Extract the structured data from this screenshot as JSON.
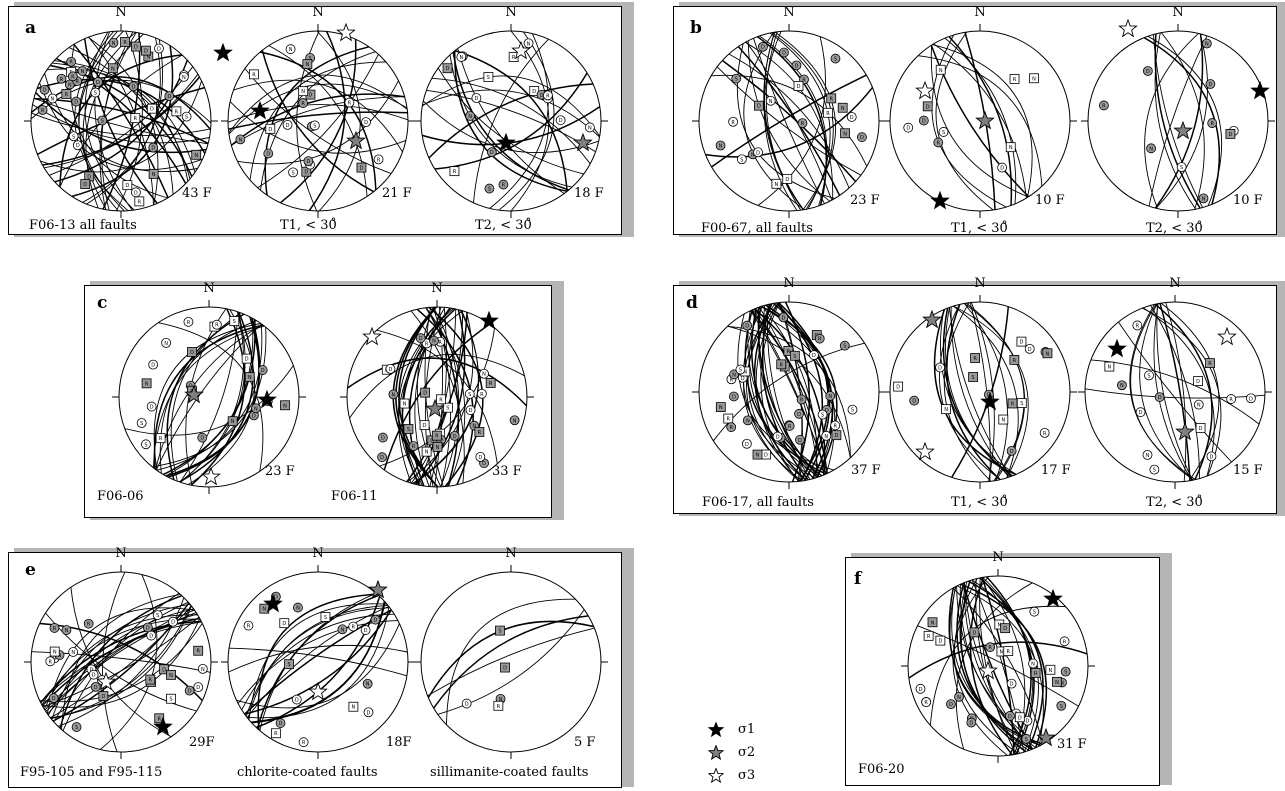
{
  "north_label": "N",
  "colors": {
    "sigma1": "#000000",
    "sigma2": "#7f7f7f",
    "sigma3": "#ffffff",
    "symbol_gray": "#9a9a9a",
    "shadow": "#b5b5b5"
  },
  "legend": [
    {
      "id": "s1",
      "label": "σ1",
      "fill": "#000000"
    },
    {
      "id": "s2",
      "label": "σ2",
      "fill": "#7f7f7f"
    },
    {
      "id": "s3",
      "label": "σ3",
      "fill": "#ffffff"
    }
  ],
  "panels": [
    {
      "id": "a",
      "letter": "a",
      "nets": [
        {
          "label": "F06-13 all faults",
          "count": "43 F",
          "n": 43,
          "seed": 11,
          "azim": [
            0,
            180
          ],
          "s1": [
            102,
            -68
          ],
          "s2": [
            null,
            null
          ],
          "s3": [
            null,
            null
          ]
        },
        {
          "label": "T1, < 30̊",
          "count": "21 F",
          "n": 21,
          "seed": 23,
          "azim": [
            0,
            180
          ],
          "s1": [
            -58,
            -10
          ],
          "s2": [
            38,
            20
          ],
          "s3": [
            28,
            -88
          ]
        },
        {
          "label": "T2, < 30̊",
          "count": "18 F",
          "n": 18,
          "seed": 37,
          "azim": [
            0,
            180
          ],
          "s1": [
            -5,
            22
          ],
          "s2": [
            72,
            22
          ],
          "s3": [
            10,
            -70
          ]
        }
      ]
    },
    {
      "id": "b",
      "letter": "b",
      "nets": [
        {
          "label": "F00-67, all faults",
          "count": "23 F",
          "n": 23,
          "seed": 41,
          "azim": [
            95,
            140
          ],
          "s1": [
            null,
            null
          ],
          "s2": [
            null,
            null
          ],
          "s3": [
            null,
            null
          ]
        },
        {
          "label": "T1, < 30̊",
          "count": "10 F",
          "n": 10,
          "seed": 53,
          "azim": [
            95,
            140
          ],
          "s1": [
            -40,
            80
          ],
          "s2": [
            5,
            0
          ],
          "s3": [
            -55,
            -30
          ]
        },
        {
          "label": "T2, < 30̊",
          "count": "10 F",
          "n": 10,
          "seed": 67,
          "azim": [
            70,
            120
          ],
          "s1": [
            82,
            -30
          ],
          "s2": [
            5,
            10
          ],
          "s3": [
            -50,
            -92
          ]
        }
      ]
    },
    {
      "id": "c",
      "letter": "c",
      "nets": [
        {
          "label": "F06-06",
          "count": "23 F",
          "n": 23,
          "seed": 71,
          "azim": [
            50,
            80
          ],
          "s1": [
            58,
            3
          ],
          "s2": [
            -15,
            -2
          ],
          "s3": [
            2,
            80
          ]
        },
        {
          "label": "F06-11",
          "count": "33 F",
          "n": 33,
          "seed": 83,
          "azim": [
            70,
            110
          ],
          "s1": [
            52,
            -76
          ],
          "s2": [
            -2,
            12
          ],
          "s3": [
            -65,
            -60
          ]
        }
      ]
    },
    {
      "id": "d",
      "letter": "d",
      "nets": [
        {
          "label": "F06-17, all faults",
          "count": "37 F",
          "n": 37,
          "seed": 91,
          "azim": [
            95,
            120
          ],
          "s1": [
            null,
            null
          ],
          "s2": [
            null,
            null
          ],
          "s3": [
            null,
            null
          ]
        },
        {
          "label": "T1, < 30̊",
          "count": "17 F",
          "n": 17,
          "seed": 101,
          "azim": [
            95,
            115
          ],
          "s1": [
            10,
            10
          ],
          "s2": [
            -48,
            -72
          ],
          "s3": [
            -55,
            60
          ]
        },
        {
          "label": "T2, < 30̊",
          "count": "15 F",
          "n": 15,
          "seed": 113,
          "azim": [
            95,
            115
          ],
          "s1": [
            -58,
            -43
          ],
          "s2": [
            10,
            40
          ],
          "s3": [
            52,
            -55
          ]
        }
      ]
    },
    {
      "id": "e",
      "letter": "e",
      "nets": [
        {
          "label": "F95-105 and F95-115",
          "count": "29F",
          "n": 29,
          "seed": 127,
          "azim": [
            25,
            50
          ],
          "s1": [
            42,
            65
          ],
          "s2": [
            null,
            null
          ],
          "s3": [
            -15,
            20
          ]
        },
        {
          "label": "chlorite-coated faults",
          "count": "18F",
          "n": 18,
          "seed": 131,
          "azim": [
            25,
            50
          ],
          "s1": [
            -45,
            -58
          ],
          "s2": [
            60,
            -72
          ],
          "s3": [
            0,
            30
          ]
        },
        {
          "label": "sillimanite-coated faults",
          "count": "5 F",
          "n": 5,
          "seed": 139,
          "azim": [
            20,
            45
          ],
          "s1": [
            null,
            null
          ],
          "s2": [
            null,
            null
          ],
          "s3": [
            null,
            null
          ]
        }
      ]
    },
    {
      "id": "f",
      "letter": "f",
      "nets": [
        {
          "label": "F06-20",
          "count": "31 F",
          "n": 31,
          "seed": 149,
          "azim": [
            95,
            120
          ],
          "s1": [
            55,
            -67
          ],
          "s2": [
            48,
            72
          ],
          "s3": [
            -10,
            5
          ]
        }
      ]
    }
  ]
}
